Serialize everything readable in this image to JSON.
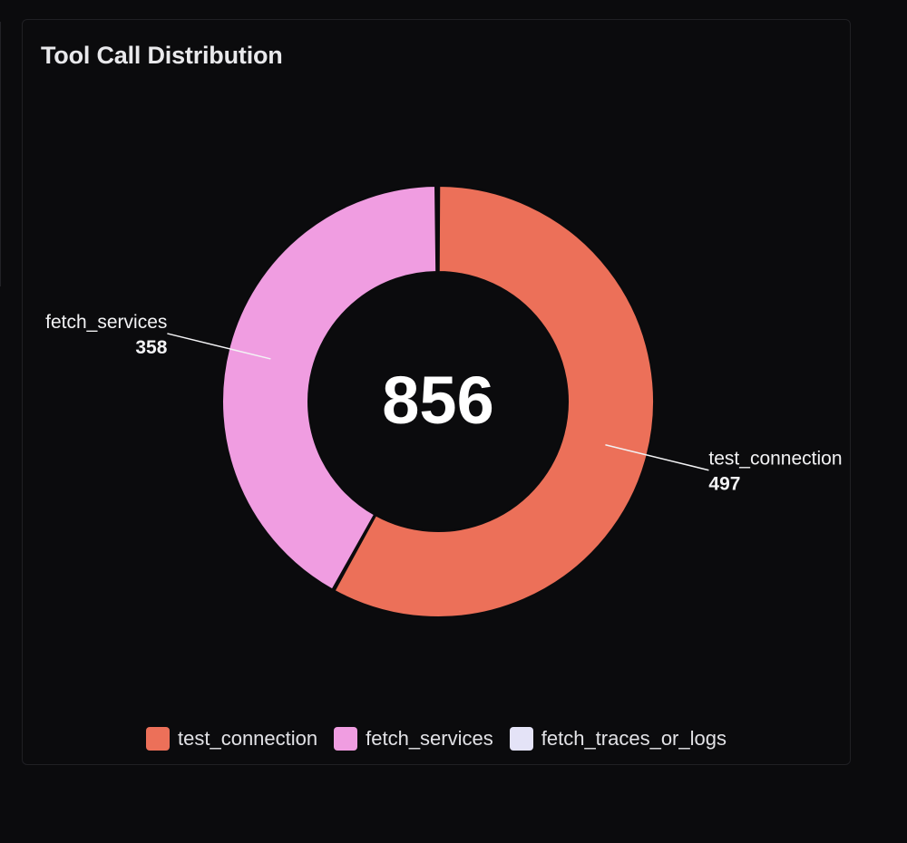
{
  "card": {
    "title": "Tool Call Distribution"
  },
  "chart_data": {
    "type": "pie",
    "variant": "donut",
    "total_label": "856",
    "categories": [
      "test_connection",
      "fetch_services",
      "fetch_traces_or_logs"
    ],
    "values": [
      497,
      358,
      1
    ],
    "colors": [
      "#ec7059",
      "#f09de1",
      "#e4e3f7"
    ],
    "data_labels": [
      {
        "name": "test_connection",
        "value": "497"
      },
      {
        "name": "fetch_services",
        "value": "358"
      }
    ],
    "legend_position": "bottom-center"
  }
}
